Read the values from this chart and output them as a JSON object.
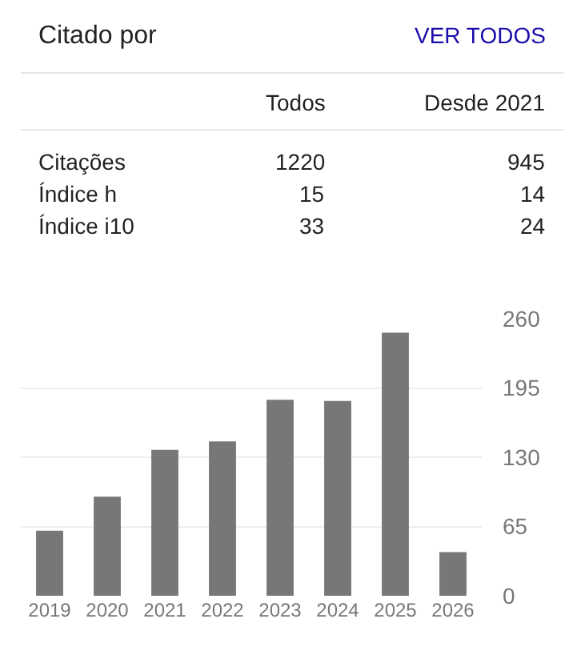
{
  "chart_data": [
    {
      "type": "other",
      "title": "Citado por",
      "annotations": [
        "VER TODOS",
        "Todos",
        "Desde 2021",
        "Citações",
        "1220",
        "945",
        "Índice h",
        "15",
        "14",
        "Índice i10",
        "33",
        "24"
      ]
    },
    {
      "type": "bar",
      "categories": [
        "2019",
        "2020",
        "2021",
        "2022",
        "2023",
        "2024",
        "2025",
        "2026"
      ],
      "values": [
        61,
        93,
        137,
        145,
        184,
        183,
        247,
        41
      ],
      "color": "#777777",
      "ylim": [
        0,
        260
      ],
      "yticks": [
        0,
        65,
        130,
        195,
        260
      ],
      "grid": "y"
    }
  ]
}
